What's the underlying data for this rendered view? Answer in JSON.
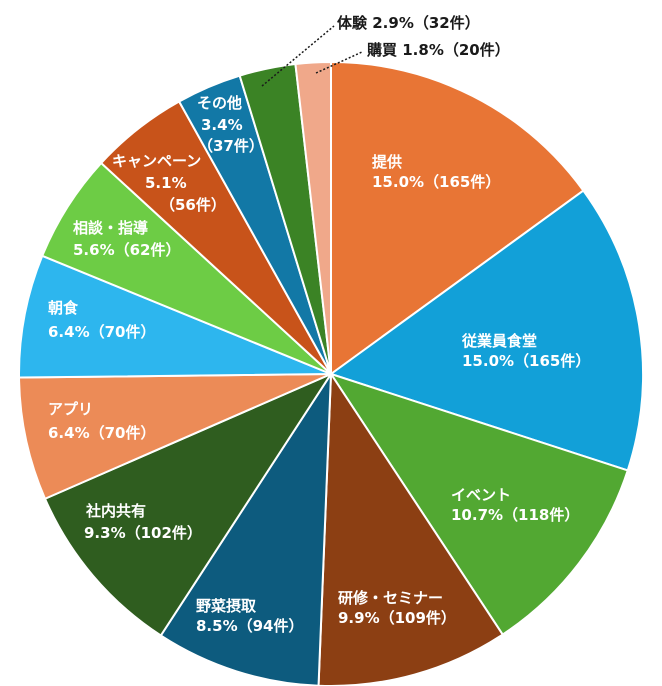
{
  "chart_data": {
    "type": "pie",
    "title": "",
    "slices": [
      {
        "name": "提供",
        "percent_label": "15.0%（165件）",
        "value": 165,
        "color": "#E87535"
      },
      {
        "name": "従業員食堂",
        "percent_label": "15.0%（165件）",
        "value": 165,
        "color": "#12A0D8"
      },
      {
        "name": "イベント",
        "percent_label": "10.7%（118件）",
        "value": 118,
        "color": "#52A832"
      },
      {
        "name": "研修・セミナー",
        "percent_label": "9.9%（109件）",
        "value": 109,
        "color": "#8C3F13"
      },
      {
        "name": "野菜摂取",
        "percent_label": "8.5%（94件）",
        "value": 94,
        "color": "#0D5B7E"
      },
      {
        "name": "社内共有",
        "percent_label": "9.3%（102件）",
        "value": 102,
        "color": "#2F5D1F"
      },
      {
        "name": "アプリ",
        "percent_label": "6.4%（70件）",
        "value": 70,
        "color": "#EC8B57"
      },
      {
        "name": "朝食",
        "percent_label": "6.4%（70件）",
        "value": 70,
        "color": "#2DB6EE"
      },
      {
        "name": "相談・指導",
        "percent_label": "5.6%（62件）",
        "value": 62,
        "color": "#6DCC45"
      },
      {
        "name": "キャンペーン",
        "percent_label": "5.1%",
        "extra_label": "（56件）",
        "value": 56,
        "color": "#C8531A"
      },
      {
        "name": "その他",
        "percent_label": "3.4%",
        "extra_label": "（37件）",
        "value": 37,
        "color": "#1278A6"
      },
      {
        "name": "体験",
        "percent_label": "2.9%（32件）",
        "value": 32,
        "color": "#3B8325"
      },
      {
        "name": "購買",
        "percent_label": "1.8%（20件）",
        "value": 20,
        "color": "#F0A88A"
      }
    ]
  }
}
